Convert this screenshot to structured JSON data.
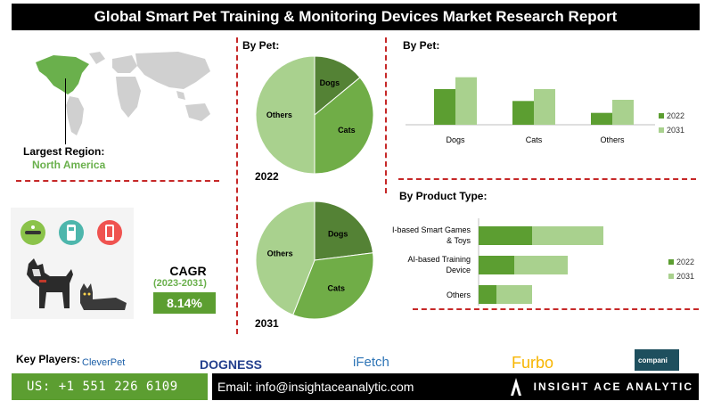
{
  "header": {
    "title": "Global Smart Pet Training & Monitoring Devices Market Research Report"
  },
  "region": {
    "label": "Largest Region:",
    "value": "North America"
  },
  "sections": {
    "pie_title": "By Pet:",
    "bar_pet_title": "By Pet:",
    "bar_product_title": "By Product Type:"
  },
  "cagr": {
    "label": "CAGR",
    "years": "(2023-2031)",
    "value": "8.14%"
  },
  "key_players": {
    "label": "Key Players:",
    "logos": [
      "CleverPet",
      "DOGNESS",
      "iFetch",
      "Furbo",
      "compani"
    ]
  },
  "footer": {
    "phone": "US: +1 551 226 6109",
    "email": "Email: info@insightaceanalytic.com",
    "brand": "INSIGHT ACE ANALYTIC"
  },
  "colors": {
    "dark_green": "#5c9e31",
    "light_green": "#a9d18e",
    "pie_dark": "#548235",
    "pie_mid": "#70ad47",
    "pie_light": "#a9d18e",
    "accent_red": "#c62828"
  },
  "icons": [
    "world-map-icon",
    "dog-icon",
    "cat-icon",
    "collar-device-icon",
    "remote-device-icon",
    "phone-app-icon"
  ],
  "chart_data": [
    {
      "type": "pie",
      "year_label": "2022",
      "labels": [
        "Dogs",
        "Cats",
        "Others"
      ],
      "values": [
        14,
        36,
        50
      ]
    },
    {
      "type": "pie",
      "year_label": "2031",
      "labels": [
        "Dogs",
        "Cats",
        "Others"
      ],
      "values": [
        23,
        33,
        44
      ]
    },
    {
      "type": "bar",
      "orientation": "vertical",
      "categories": [
        "Dogs",
        "Cats",
        "Others"
      ],
      "series": [
        {
          "name": "2022",
          "values": [
            3.0,
            2.0,
            1.0
          ]
        },
        {
          "name": "2031",
          "values": [
            4.0,
            3.0,
            2.1
          ]
        }
      ],
      "ylim": [
        0,
        4.5
      ],
      "legend": "right"
    },
    {
      "type": "bar",
      "orientation": "horizontal",
      "stacked": true,
      "categories": [
        "AI-based Smart Games & Toys",
        "AI-based Training Device",
        "Others"
      ],
      "series": [
        {
          "name": "2022",
          "values": [
            3.0,
            2.0,
            1.0
          ]
        },
        {
          "name": "2031",
          "values": [
            4.0,
            3.0,
            2.0
          ]
        }
      ],
      "xlim": [
        0,
        8
      ],
      "legend": "right"
    }
  ]
}
